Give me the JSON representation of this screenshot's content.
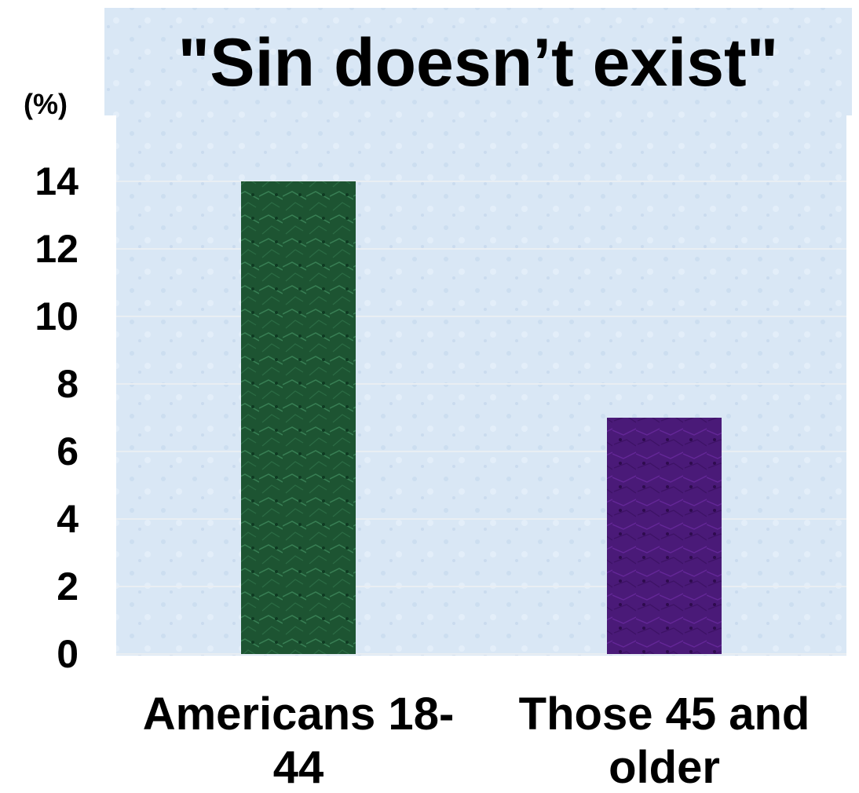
{
  "chart_data": {
    "type": "bar",
    "title": "\"Sin doesn’t exist\"",
    "ylabel": "(%)",
    "xlabel": "",
    "categories": [
      "Americans 18-44",
      "Those 45 and older"
    ],
    "category_lines": [
      [
        "Americans 18-",
        "44"
      ],
      [
        "Those 45 and",
        "older"
      ]
    ],
    "values": [
      14,
      7
    ],
    "ylim": [
      0,
      16
    ],
    "yticks": [
      "0",
      "2",
      "4",
      "6",
      "8",
      "10",
      "12",
      "14"
    ],
    "grid": true,
    "legend": "none",
    "bar_colors": [
      "#1f5a35",
      "#4b1a78"
    ],
    "background_color": "#d9e7f5"
  }
}
